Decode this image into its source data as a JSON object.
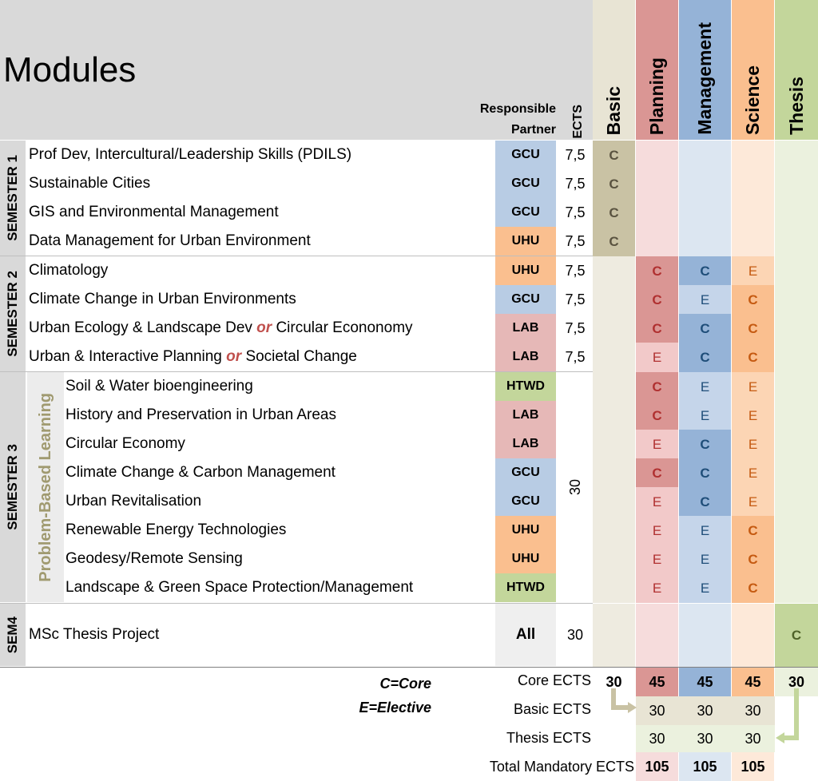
{
  "header": {
    "title": "Modules",
    "responsible_partner": "Responsible Partner",
    "ects": "ECTS",
    "columns": [
      "Basic",
      "Planning",
      "Management",
      "Science",
      "Thesis"
    ]
  },
  "semesters": [
    {
      "label": "SEMESTER 1"
    },
    {
      "label": "SEMESTER 2"
    },
    {
      "label": "SEMESTER 3"
    },
    {
      "label": "SEM4"
    }
  ],
  "pbl_label": "Problem-Based Learning",
  "modules": [
    {
      "name": "Prof Dev, Intercultural/Leadership Skills (PDILS)",
      "partner": "GCU",
      "ects": "7,5",
      "levels": [
        "C",
        "",
        "",
        "",
        ""
      ]
    },
    {
      "name": "Sustainable Cities",
      "partner": "GCU",
      "ects": "7,5",
      "levels": [
        "C",
        "",
        "",
        "",
        ""
      ]
    },
    {
      "name": "GIS and Environmental Management",
      "partner": "GCU",
      "ects": "7,5",
      "levels": [
        "C",
        "",
        "",
        "",
        ""
      ]
    },
    {
      "name": "Data Management for Urban Environment",
      "partner": "UHU",
      "ects": "7,5",
      "levels": [
        "C",
        "",
        "",
        "",
        ""
      ]
    },
    {
      "name": "Climatology",
      "partner": "UHU",
      "ects": "7,5",
      "levels": [
        "",
        "C",
        "C",
        "E",
        ""
      ]
    },
    {
      "name": "Climate Change in Urban Environments",
      "partner": "GCU",
      "ects": "7,5",
      "levels": [
        "",
        "C",
        "E",
        "C",
        ""
      ]
    },
    {
      "name_a": "Urban Ecology & Landscape Dev",
      "or": "or",
      "name_b": "Circular Econonomy",
      "partner": "LAB",
      "ects": "7,5",
      "levels": [
        "",
        "C",
        "C",
        "C",
        ""
      ]
    },
    {
      "name_a": "Urban & Interactive Planning",
      "or": "or",
      "name_b": "Societal Change",
      "partner": "LAB",
      "ects": "7,5",
      "levels": [
        "",
        "E",
        "C",
        "C",
        ""
      ]
    },
    {
      "name": "Soil & Water bioengineering",
      "partner": "HTWD",
      "levels": [
        "",
        "C",
        "E",
        "E",
        ""
      ]
    },
    {
      "name": "History and Preservation in Urban Areas",
      "partner": "LAB",
      "levels": [
        "",
        "C",
        "E",
        "E",
        ""
      ]
    },
    {
      "name": "Circular Economy",
      "partner": "LAB",
      "levels": [
        "",
        "E",
        "C",
        "E",
        ""
      ]
    },
    {
      "name": "Climate Change & Carbon Management",
      "partner": "GCU",
      "levels": [
        "",
        "C",
        "C",
        "E",
        ""
      ]
    },
    {
      "name": "Urban Revitalisation",
      "partner": "GCU",
      "levels": [
        "",
        "E",
        "C",
        "E",
        ""
      ]
    },
    {
      "name": "Renewable Energy Technologies",
      "partner": "UHU",
      "levels": [
        "",
        "E",
        "E",
        "C",
        ""
      ]
    },
    {
      "name": "Geodesy/Remote Sensing",
      "partner": "UHU",
      "levels": [
        "",
        "E",
        "E",
        "C",
        ""
      ]
    },
    {
      "name": "Landscape & Green Space Protection/Management",
      "partner": "HTWD",
      "levels": [
        "",
        "E",
        "E",
        "C",
        ""
      ]
    },
    {
      "name": "MSc Thesis Project",
      "partner": "All",
      "ects": "30",
      "levels": [
        "",
        "",
        "",
        "",
        "C"
      ]
    }
  ],
  "sem3_ects": "30",
  "legend": {
    "core": "C=Core",
    "elective": "E=Elective"
  },
  "summary": {
    "core_label": "Core ECTS",
    "core": [
      "30",
      "45",
      "45",
      "45",
      "30"
    ],
    "basic_label": "Basic ECTS",
    "basic": [
      "30",
      "30",
      "30"
    ],
    "thesis_label": "Thesis ECTS",
    "thesis": [
      "30",
      "30",
      "30"
    ],
    "total_label": "Total Mandatory ECTS",
    "total": [
      "105",
      "105",
      "105"
    ]
  },
  "colors": {
    "basic_dark": "#c9c2a4",
    "basic_light": "#eeebe0",
    "planning_dark": "#da9694",
    "planning_mid": "#f2c9c9",
    "planning_light": "#f6dcdc",
    "management_dark": "#95b3d7",
    "management_mid": "#c5d5ea",
    "management_light": "#dce6f1",
    "science_dark": "#fabf8f",
    "science_mid": "#fcd5b4",
    "science_light": "#fde9d9",
    "thesis_dark": "#c3d69b",
    "thesis_light": "#ebf1de",
    "partner_gcu": "#b8cce4",
    "partner_uhu": "#fabf8f",
    "partner_lab": "#e6b8b7",
    "partner_htwd": "#c3d69b",
    "partner_all": "#efefef"
  }
}
